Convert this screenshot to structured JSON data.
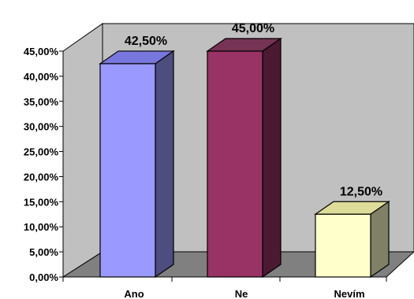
{
  "chart_data": {
    "type": "bar",
    "title": "",
    "xlabel": "",
    "ylabel": "",
    "categories": [
      "Ano",
      "Ne",
      "Nevím"
    ],
    "values": [
      42.5,
      45.0,
      12.5
    ],
    "value_labels": [
      "42,50%",
      "45,00%",
      "12,50%"
    ],
    "ylim": [
      0,
      45
    ],
    "y_ticks": [
      0,
      5,
      10,
      15,
      20,
      25,
      30,
      35,
      40,
      45
    ],
    "y_tick_labels": [
      "0,00%",
      "5,00%",
      "10,00%",
      "15,00%",
      "20,00%",
      "25,00%",
      "30,00%",
      "35,00%",
      "40,00%",
      "45,00%"
    ],
    "grid": false,
    "legend": "none",
    "style": "3d-column",
    "colors": {
      "bars_front": [
        "#9999ff",
        "#993366",
        "#ffffcc"
      ],
      "bars_top": [
        "#7777dd",
        "#773355",
        "#dddd99"
      ],
      "bars_side": [
        "#4d4d80",
        "#4c1933",
        "#808066"
      ],
      "back_wall": "#c0c0c0",
      "floor": "#808080"
    }
  }
}
